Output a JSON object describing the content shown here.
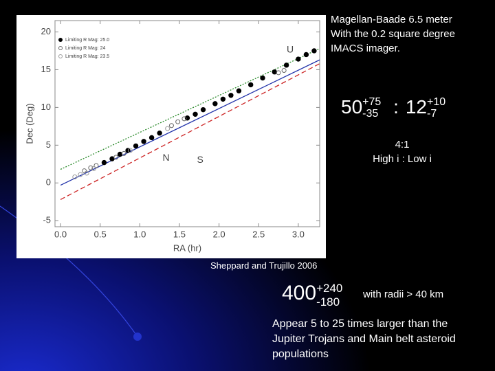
{
  "chart_data": {
    "type": "scatter",
    "x_label": "RA (hr)",
    "y_label": "Dec (Deg)",
    "xlim": [
      -0.07,
      3.27
    ],
    "ylim": [
      -5.8,
      21.5
    ],
    "xticks": [
      {
        "value": 0,
        "label": "0.0"
      },
      {
        "value": 0.5,
        "label": "0.5"
      },
      {
        "value": 1,
        "label": "1.0"
      },
      {
        "value": 1.5,
        "label": "1.5"
      },
      {
        "value": 2,
        "label": "2.0"
      },
      {
        "value": 2.5,
        "label": "2.5"
      },
      {
        "value": 3,
        "label": "3.0"
      }
    ],
    "yticks": [
      -5,
      0,
      5,
      10,
      15,
      20
    ],
    "series": [
      {
        "name": "Limiting R Mag: 25.0",
        "color": "#000000",
        "filled": true,
        "x": [
          0.55,
          0.65,
          0.75,
          0.85,
          0.95,
          1.05,
          1.15,
          1.25,
          1.6,
          1.7,
          1.8,
          1.95,
          2.05,
          2.15,
          2.25,
          2.4,
          2.55,
          2.7,
          2.85,
          3.0,
          3.1,
          3.2
        ],
        "values": [
          2.7,
          3.2,
          3.8,
          4.3,
          4.9,
          5.5,
          6.0,
          6.6,
          8.6,
          9.1,
          9.7,
          10.5,
          11.1,
          11.6,
          12.2,
          13.0,
          13.9,
          14.7,
          15.6,
          16.4,
          17.0,
          17.5
        ]
      },
      {
        "name": "Limiting R Mag: 24",
        "color": "#666666",
        "filled": false,
        "x": [
          0.3,
          0.38,
          0.45,
          0.7,
          0.8,
          1.4,
          1.48,
          1.56,
          2.75,
          2.82
        ],
        "values": [
          1.6,
          2.0,
          2.3,
          3.4,
          3.9,
          7.6,
          8.1,
          8.5,
          14.6,
          14.9
        ]
      },
      {
        "name": "Limiting R Mag: 23.5",
        "color": "#999999",
        "filled": false,
        "x": [
          0.18,
          0.25,
          0.33,
          0.42,
          0.88,
          1.35
        ],
        "values": [
          0.8,
          1.1,
          1.3,
          1.9,
          4.3,
          7.2
        ]
      }
    ],
    "lines": [
      {
        "name": "U",
        "color": "#2a8a2a",
        "style": "dotted",
        "x": [
          0,
          3.27
        ],
        "values": [
          1.8,
          17.8
        ]
      },
      {
        "name": "N",
        "color": "#2233aa",
        "style": "solid",
        "x": [
          0,
          3.27
        ],
        "values": [
          -0.3,
          16.3
        ]
      },
      {
        "name": "S",
        "color": "#cc2222",
        "style": "dashed",
        "x": [
          0,
          3.27
        ],
        "values": [
          -2.2,
          15.8
        ]
      }
    ]
  },
  "slide": {
    "telescope": [
      "Magellan-Baade 6.5 meter",
      "With the 0.2 square degree",
      "IMACS imager."
    ],
    "ratio": {
      "left": "50",
      "left_up": "+75",
      "left_down": "-35",
      "sep": ":",
      "right": "12",
      "right_up": "+10",
      "right_down": "-7"
    },
    "inclination": [
      "4:1",
      "High i : Low i"
    ],
    "citation": "Sheppard and Trujillo 2006",
    "count": {
      "main": "400",
      "up": "+240",
      "down": "-180",
      "note": "with radii > 40 km"
    },
    "conclusion": [
      "Appear 5 to 25 times larger than the",
      "Jupiter Trojans and Main belt asteroid",
      "populations"
    ]
  }
}
